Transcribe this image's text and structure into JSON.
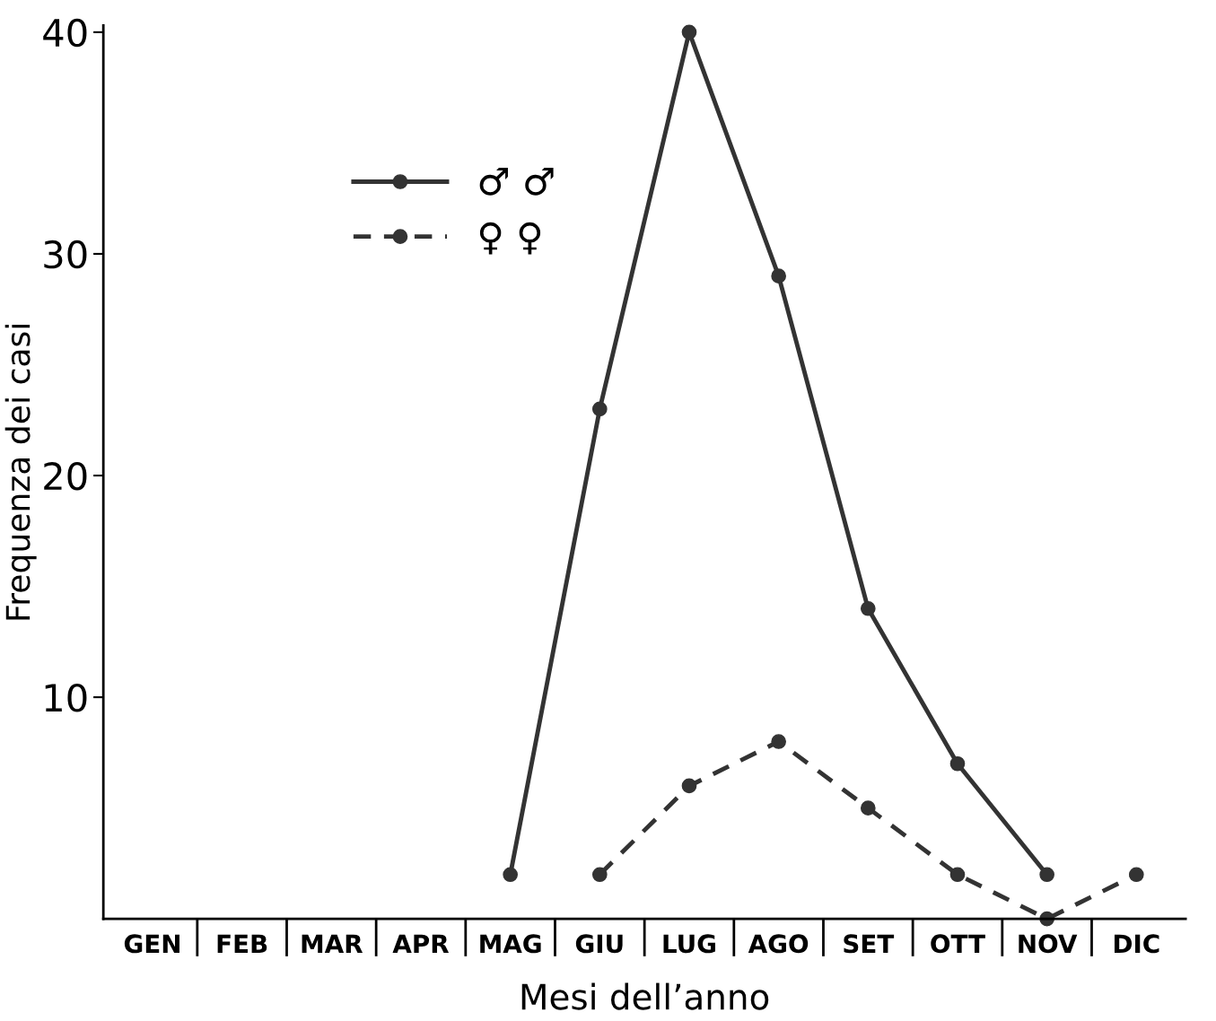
{
  "chart_data": {
    "type": "line",
    "xlabel": "Mesi dell’anno",
    "ylabel": "Frequenza dei casi",
    "categories": [
      "GEN",
      "FEB",
      "MAR",
      "APR",
      "MAG",
      "GIU",
      "LUG",
      "AGO",
      "SET",
      "OTT",
      "NOV",
      "DIC"
    ],
    "series": [
      {
        "name": "♂ ♂",
        "color": "#333333",
        "line_style": "solid",
        "values": [
          null,
          null,
          null,
          null,
          2,
          23,
          40,
          29,
          14,
          7,
          2,
          null
        ]
      },
      {
        "name": "♀ ♀",
        "color": "#333333",
        "line_style": "dashed",
        "values": [
          null,
          null,
          null,
          null,
          null,
          2,
          6,
          8,
          5,
          2,
          0,
          2
        ]
      }
    ],
    "ylim": [
      0,
      40.3
    ],
    "yticks": [
      10,
      20,
      30,
      40
    ],
    "marker": "circle",
    "grid": false,
    "legend": "top left"
  }
}
